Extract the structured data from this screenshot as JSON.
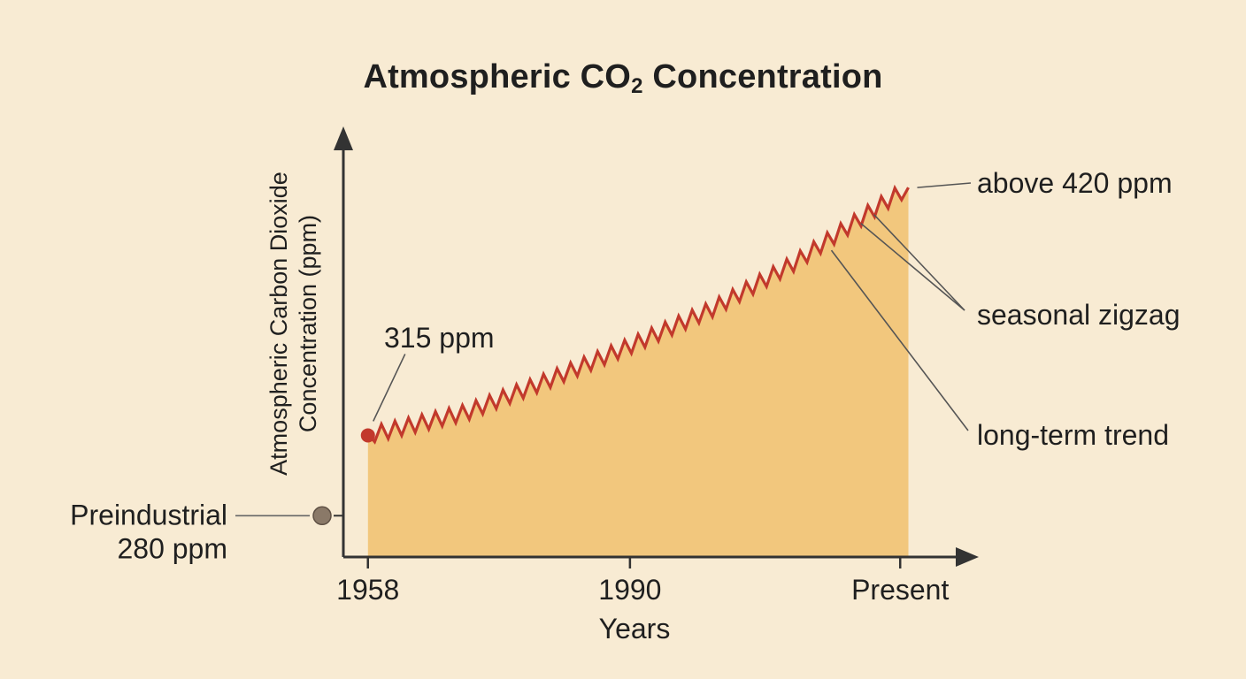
{
  "colors": {
    "background": "#f8ebd3",
    "area_fill": "#f2c77d",
    "line": "#c2392c",
    "axis": "#333333",
    "text": "#1f1f1f",
    "marker_preindustrial": "#8a7968"
  },
  "title": {
    "main": "Atmospheric CO",
    "subscript": "2",
    "rest": " Concentration"
  },
  "chart_data": {
    "type": "area",
    "title": "Atmospheric CO2 Concentration",
    "xlabel": "Years",
    "ylabel_line1": "Atmospheric Carbon Dioxide",
    "ylabel_line2": "Concentration (ppm)",
    "x_ticks": [
      {
        "year": 1958,
        "label": "1958"
      },
      {
        "year": 1990,
        "label": "1990"
      },
      {
        "year": 2023,
        "label": "Present"
      }
    ],
    "xlim": [
      1955,
      2030
    ],
    "ylim": [
      262,
      440
    ],
    "grid": false,
    "legend": "none",
    "series": [
      {
        "trend": [
          {
            "year": 1958,
            "ppm": 315
          },
          {
            "year": 1970,
            "ppm": 325
          },
          {
            "year": 1980,
            "ppm": 339
          },
          {
            "year": 1990,
            "ppm": 354
          },
          {
            "year": 2000,
            "ppm": 370
          },
          {
            "year": 2010,
            "ppm": 390
          },
          {
            "year": 2020,
            "ppm": 414
          },
          {
            "year": 2024,
            "ppm": 423
          }
        ],
        "seasonal_amplitude_ppm": 3.5,
        "cycle_years": 1.65
      }
    ],
    "reference_points": [
      {
        "name": "preindustrial",
        "ppm": 280,
        "label_line1": "Preindustrial",
        "label_line2": "280 ppm"
      },
      {
        "name": "start",
        "year": 1958,
        "ppm": 315,
        "label": "315 ppm"
      }
    ],
    "annotations": {
      "end": "above 420 ppm",
      "seasonal": "seasonal zigzag",
      "trend": "long-term trend"
    }
  }
}
